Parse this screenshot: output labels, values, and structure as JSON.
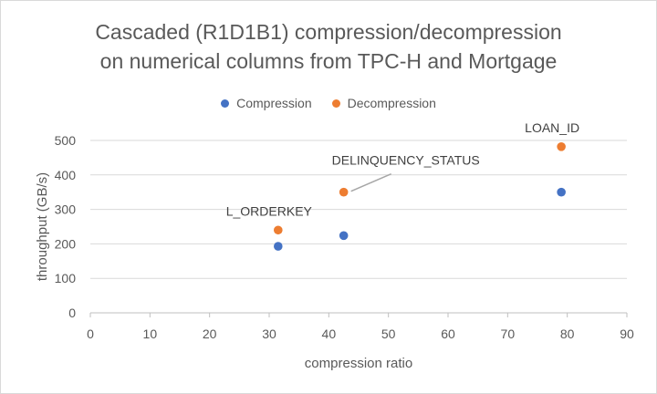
{
  "chart_data": {
    "type": "scatter",
    "title_lines": [
      "Cascaded (R1D1B1) compression/decompression",
      "on numerical columns from TPC-H and Mortgage"
    ],
    "xlabel": "compression ratio",
    "ylabel": "throughput (GB/s)",
    "xlim": [
      0,
      90
    ],
    "ylim": [
      0,
      500
    ],
    "x_ticks": [
      0,
      10,
      20,
      30,
      40,
      50,
      60,
      70,
      80,
      90
    ],
    "y_ticks": [
      0,
      100,
      200,
      300,
      400,
      500
    ],
    "grid": "horizontal",
    "legend_position": "top",
    "series": [
      {
        "name": "Compression",
        "color": "#4472c4",
        "points": [
          {
            "x": 31.5,
            "y": 193
          },
          {
            "x": 42.5,
            "y": 224
          },
          {
            "x": 79,
            "y": 350
          }
        ]
      },
      {
        "name": "Decompression",
        "color": "#ed7d31",
        "points": [
          {
            "x": 31.5,
            "y": 240
          },
          {
            "x": 42.5,
            "y": 350
          },
          {
            "x": 79,
            "y": 482
          }
        ]
      }
    ],
    "annotations": [
      {
        "text": "L_ORDERKEY",
        "x": 31.5,
        "y": 240
      },
      {
        "text": "DELINQUENCY_STATUS",
        "x": 42.5,
        "y": 350,
        "leader_line": true
      },
      {
        "text": "LOAN_ID",
        "x": 79,
        "y": 482
      }
    ]
  }
}
